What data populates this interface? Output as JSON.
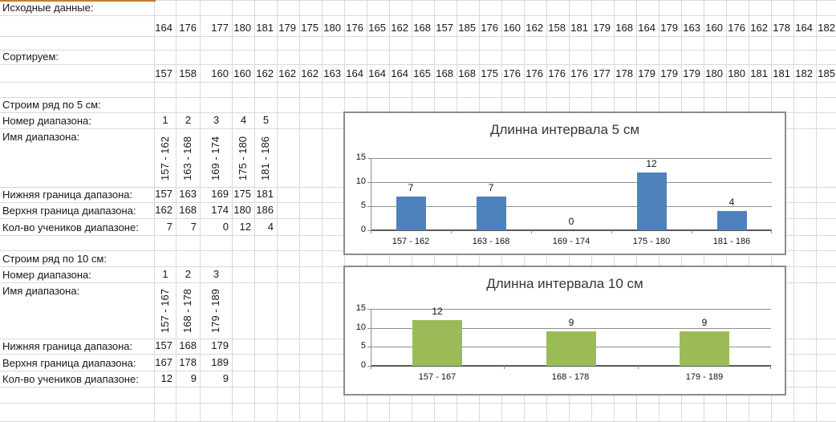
{
  "spreadsheet": {
    "rows": [
      {
        "label": "Исходные данные:"
      },
      {
        "values": [
          "164",
          "176",
          "177",
          "180",
          "181",
          "179",
          "175",
          "180",
          "176",
          "165",
          "162",
          "168",
          "157",
          "185",
          "176",
          "160",
          "162",
          "158",
          "181",
          "179",
          "168",
          "164",
          "179",
          "163",
          "160",
          "176",
          "162",
          "178",
          "164",
          "182"
        ],
        "align": "num"
      },
      {},
      {
        "label": "Сортируем:"
      },
      {
        "values": [
          "157",
          "158",
          "160",
          "160",
          "162",
          "162",
          "162",
          "163",
          "164",
          "164",
          "164",
          "165",
          "168",
          "168",
          "175",
          "176",
          "176",
          "176",
          "176",
          "177",
          "178",
          "179",
          "179",
          "179",
          "180",
          "180",
          "181",
          "181",
          "182",
          "185"
        ],
        "align": "num"
      },
      {},
      {
        "label": "Строим ряд по 5 см:"
      },
      {
        "label": "Номер диапазона:",
        "values": [
          "1",
          "2",
          "3",
          "4",
          "5"
        ],
        "align": "ctr"
      },
      {
        "label": "Имя диапазона:",
        "values": [
          "157 - 162",
          "163 - 168",
          "169 - 174",
          "175 - 180",
          "181 - 186"
        ],
        "vertical": true
      },
      {
        "label": "Нижняя граница дапазона:",
        "values": [
          "157",
          "163",
          "169",
          "175",
          "181"
        ],
        "align": "num"
      },
      {
        "label": "Верхня граница диапазона:",
        "values": [
          "162",
          "168",
          "174",
          "180",
          "186"
        ],
        "align": "num"
      },
      {
        "label": "Кол-во учеников диапазоне:",
        "values": [
          "7",
          "7",
          "0",
          "12",
          "4"
        ],
        "align": "num"
      },
      {},
      {
        "label": "Строим ряд по 10 см:"
      },
      {
        "label": "Номер диапазона:",
        "values": [
          "1",
          "2",
          "3"
        ],
        "align": "ctr"
      },
      {
        "label": "Имя диапазона:",
        "values": [
          "157 - 167",
          "168 - 178",
          "179 - 189"
        ],
        "vertical": true
      },
      {
        "label": "Нижняя граница дапазона:",
        "values": [
          "157",
          "168",
          "179"
        ],
        "align": "num"
      },
      {
        "label": "Верхня граница диапазона:",
        "values": [
          "167",
          "178",
          "189"
        ],
        "align": "num"
      },
      {
        "label": "Кол-во учеников диапазоне:",
        "values": [
          "12",
          "9",
          "9"
        ],
        "align": "num"
      },
      {},
      {}
    ]
  },
  "chart_data": [
    {
      "type": "bar",
      "title": "Длинна интервала 5 см",
      "categories": [
        "157 - 162",
        "163 - 168",
        "169 - 174",
        "175 - 180",
        "181 - 186"
      ],
      "values": [
        7,
        7,
        0,
        12,
        4
      ],
      "xlabel": "",
      "ylabel": "",
      "ylim": [
        0,
        15
      ],
      "yticks": [
        0,
        5,
        10,
        15
      ],
      "grid": true,
      "data_labels": true,
      "legend": false,
      "bar_color": "#4F81BD"
    },
    {
      "type": "bar",
      "title": "Длинна интервала 10 см",
      "categories": [
        "157 - 167",
        "168 - 178",
        "179 - 189"
      ],
      "values": [
        12,
        9,
        9
      ],
      "xlabel": "",
      "ylabel": "",
      "ylim": [
        0,
        15
      ],
      "yticks": [
        0,
        5,
        10,
        15
      ],
      "grid": true,
      "data_labels": true,
      "legend": false,
      "bar_color": "#9BBB59"
    }
  ],
  "colors": {
    "sheet_gridline": "#d9d9d9",
    "chart_border": "#8c8c8c",
    "chart_gridline": "#8e8e8e",
    "selection_strip": "#c57a38"
  }
}
